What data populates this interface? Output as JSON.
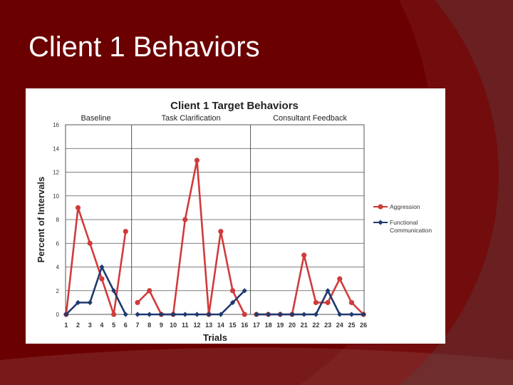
{
  "slide": {
    "title": "Client 1 Behaviors",
    "background_color": "#6b0000"
  },
  "chart_data": {
    "type": "line",
    "title": "Client 1 Target Behaviors",
    "xlabel": "Trials",
    "ylabel": "Percent of Intervals",
    "ylim": [
      0,
      16
    ],
    "yticks": [
      0,
      2,
      4,
      6,
      8,
      10,
      12,
      14,
      16
    ],
    "grid": true,
    "legend_position": "right",
    "x": [
      1,
      2,
      3,
      4,
      5,
      6,
      7,
      8,
      9,
      10,
      11,
      12,
      13,
      14,
      15,
      16,
      17,
      18,
      19,
      20,
      21,
      22,
      23,
      24,
      25,
      26
    ],
    "phases": [
      {
        "label": "Baseline",
        "start": 1,
        "end": 6
      },
      {
        "label": "Task Clarification",
        "start": 7,
        "end": 16
      },
      {
        "label": "Consultant Feedback",
        "start": 17,
        "end": 26
      }
    ],
    "series": [
      {
        "name": "Aggression",
        "color": "#d03b3b",
        "marker": "circle",
        "values": [
          0,
          9,
          6,
          3,
          0,
          7,
          1,
          2,
          0,
          0,
          8,
          13,
          0,
          7,
          2,
          0,
          0,
          0,
          0,
          0,
          5,
          1,
          1,
          3,
          1,
          0
        ]
      },
      {
        "name": "Functional Communication",
        "color": "#1f3a6e",
        "marker": "diamond",
        "values": [
          0,
          1,
          1,
          4,
          2,
          0,
          0,
          0,
          0,
          0,
          0,
          0,
          0,
          0,
          1,
          2,
          0,
          0,
          0,
          0,
          0,
          0,
          2,
          0,
          0,
          0
        ]
      }
    ]
  }
}
